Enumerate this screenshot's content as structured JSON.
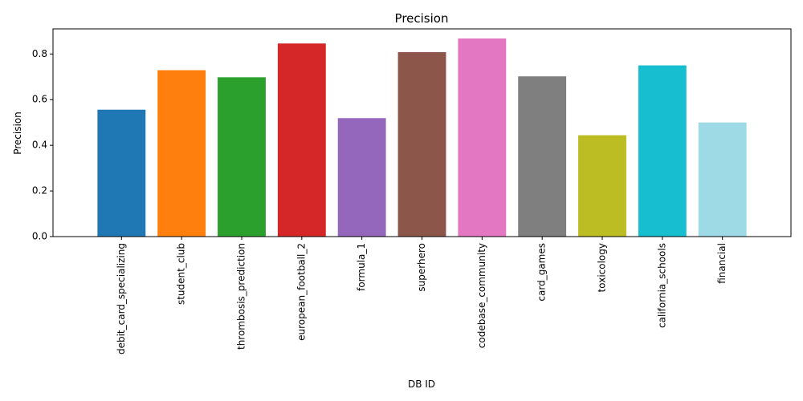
{
  "chart_data": {
    "type": "bar",
    "title": "Precision",
    "xlabel": "DB ID",
    "ylabel": "Precision",
    "ylim": [
      0,
      0.91
    ],
    "yticks": [
      0.0,
      0.2,
      0.4,
      0.6,
      0.8
    ],
    "ytick_labels": [
      "0.0",
      "0.2",
      "0.4",
      "0.6",
      "0.8"
    ],
    "grid": false,
    "categories": [
      "debit_card_specializing",
      "student_club",
      "thrombosis_prediction",
      "european_football_2",
      "formula_1",
      "superhero",
      "codebase_community",
      "card_games",
      "toxicology",
      "california_schools",
      "financial"
    ],
    "values": [
      0.556,
      0.729,
      0.698,
      0.846,
      0.519,
      0.808,
      0.868,
      0.702,
      0.444,
      0.75,
      0.5
    ],
    "colors": [
      "#1f77b4",
      "#ff7f0e",
      "#2ca02c",
      "#d62728",
      "#9467bd",
      "#8c564b",
      "#e377c2",
      "#7f7f7f",
      "#bcbd22",
      "#17becf",
      "#9edae5"
    ]
  }
}
